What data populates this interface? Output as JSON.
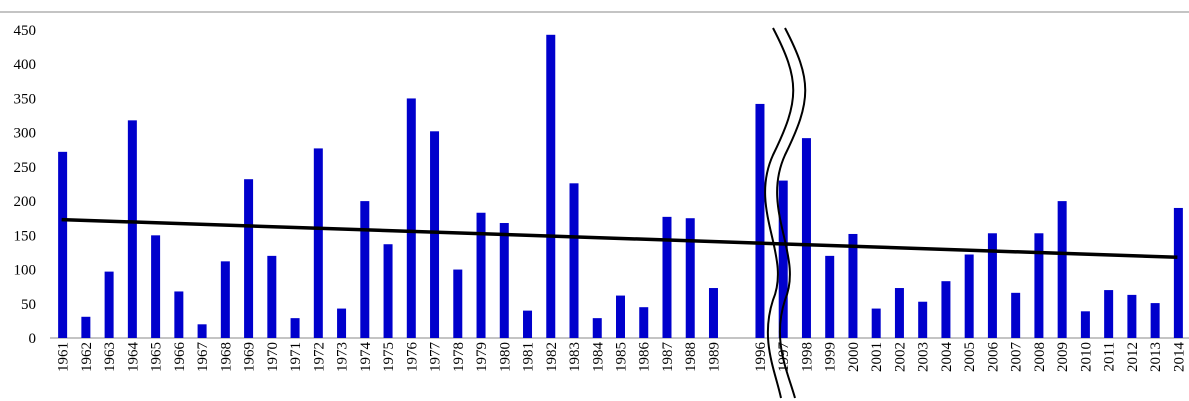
{
  "chart_data": {
    "type": "bar",
    "title": "",
    "xlabel": "",
    "ylabel": "",
    "ylim": [
      0,
      450
    ],
    "yticks": [
      0,
      50,
      100,
      150,
      200,
      250,
      300,
      350,
      400,
      450
    ],
    "ytick_labels": [
      "0",
      "50",
      "100",
      "150",
      "200",
      "250",
      "300",
      "350",
      "400",
      "450"
    ],
    "grid": false,
    "legend": "none",
    "bar_color": "#0000cc",
    "trend_color": "#000000",
    "axis_break": {
      "between": [
        "1989",
        "1996"
      ]
    },
    "categories": [
      "1961",
      "1962",
      "1963",
      "1964",
      "1965",
      "1966",
      "1967",
      "1968",
      "1969",
      "1970",
      "1971",
      "1972",
      "1973",
      "1974",
      "1975",
      "1976",
      "1977",
      "1978",
      "1979",
      "1980",
      "1981",
      "1982",
      "1983",
      "1984",
      "1985",
      "1986",
      "1987",
      "1988",
      "1989",
      "",
      "1996",
      "1997",
      "1998",
      "1999",
      "2000",
      "2001",
      "2002",
      "2003",
      "2004",
      "2005",
      "2006",
      "2007",
      "2008",
      "2009",
      "2010",
      "2011",
      "2012",
      "2013",
      "2014"
    ],
    "values": [
      272,
      31,
      97,
      318,
      150,
      68,
      20,
      112,
      232,
      120,
      29,
      277,
      43,
      200,
      137,
      350,
      302,
      100,
      183,
      168,
      40,
      443,
      226,
      29,
      62,
      45,
      177,
      175,
      73,
      null,
      342,
      230,
      292,
      120,
      152,
      43,
      73,
      53,
      83,
      122,
      153,
      66,
      153,
      200,
      39,
      70,
      63,
      51,
      190
    ],
    "series": [
      {
        "type": "trendline",
        "start": 173,
        "end": 118
      }
    ]
  }
}
